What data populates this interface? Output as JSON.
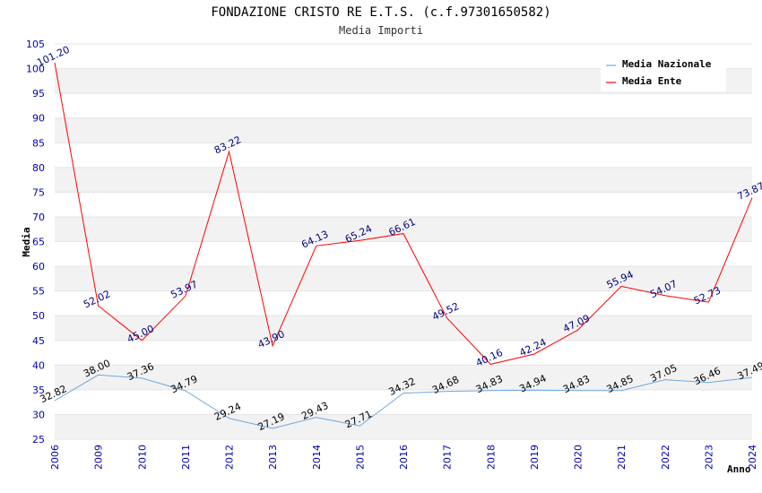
{
  "chart_data": {
    "type": "line",
    "title": "FONDAZIONE CRISTO RE E.T.S. (c.f.97301650582)",
    "subtitle": "Media Importi",
    "xlabel": "Anno",
    "ylabel": "Media",
    "ylim": [
      25,
      105
    ],
    "yticks": [
      25,
      30,
      35,
      40,
      45,
      50,
      55,
      60,
      65,
      70,
      75,
      80,
      85,
      90,
      95,
      100,
      105
    ],
    "grid": true,
    "legend_position": "top-right",
    "x": [
      "2006",
      "2009",
      "2010",
      "2011",
      "2012",
      "2013",
      "2014",
      "2015",
      "2016",
      "2017",
      "2018",
      "2019",
      "2020",
      "2021",
      "2022",
      "2023",
      "2024"
    ],
    "series": [
      {
        "name": "Media Nazionale",
        "color": "#6fa8dc",
        "values": [
          32.82,
          38.0,
          37.36,
          34.79,
          29.24,
          27.19,
          29.43,
          27.71,
          34.32,
          34.68,
          34.83,
          34.94,
          34.83,
          34.85,
          37.05,
          36.46,
          37.49
        ],
        "labels": [
          "32.82",
          "38.00",
          "37.36",
          "34.79",
          "29.24",
          "27.19",
          "29.43",
          "27.71",
          "34.32",
          "34.68",
          "34.83",
          "34.94",
          "34.83",
          "34.85",
          "37.05",
          "36.46",
          "37.49"
        ]
      },
      {
        "name": "Media Ente",
        "color": "#ff0000",
        "values": [
          101.2,
          52.02,
          45.0,
          53.97,
          83.22,
          43.9,
          64.13,
          65.24,
          66.61,
          49.52,
          40.16,
          42.24,
          47.09,
          55.94,
          54.07,
          52.73,
          73.87
        ],
        "labels": [
          "101.20",
          "52.02",
          "45.00",
          "53.97",
          "83.22",
          "43.90",
          "64.13",
          "65.24",
          "66.61",
          "49.52",
          "40.16",
          "42.24",
          "47.09",
          "55.94",
          "54.07",
          "52.73",
          "73.87"
        ]
      }
    ]
  }
}
